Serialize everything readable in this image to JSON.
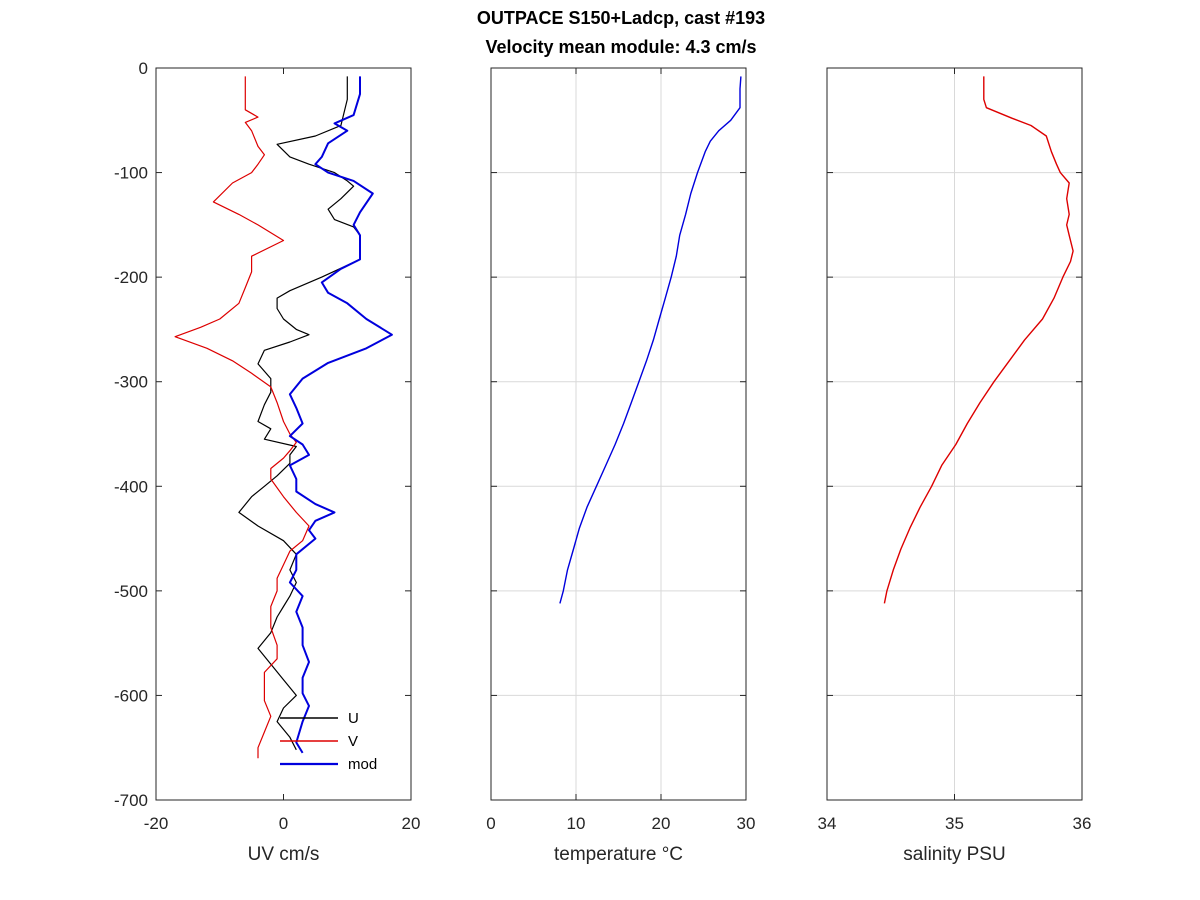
{
  "figure": {
    "title_line1": "OUTPACE S150+Ladcp, cast #193",
    "title_line2": "Velocity mean module:  4.3 cm/s"
  },
  "colors": {
    "u": "#000000",
    "v": "#dd0000",
    "mod": "#0000dd",
    "temp": "#0000dd",
    "sal": "#dd0000"
  },
  "chart_data": [
    {
      "type": "line",
      "xlabel": "UV cm/s",
      "xlim": [
        -20,
        20
      ],
      "ylim": [
        -700,
        0
      ],
      "xticks": [
        -20,
        0,
        20
      ],
      "yticks": [
        0,
        -100,
        -200,
        -300,
        -400,
        -500,
        -600,
        -700
      ],
      "grid": false,
      "legend": {
        "placement": "bottom-right",
        "entries": [
          "U",
          "V",
          "mod"
        ]
      },
      "series": [
        {
          "name": "U",
          "points": [
            [
              10,
              -8
            ],
            [
              10,
              -30
            ],
            [
              9,
              -55
            ],
            [
              5,
              -65
            ],
            [
              -1,
              -73
            ],
            [
              1,
              -85
            ],
            [
              4,
              -92
            ],
            [
              8,
              -100
            ],
            [
              10,
              -108
            ],
            [
              11,
              -113
            ],
            [
              9,
              -125
            ],
            [
              7,
              -135
            ],
            [
              8,
              -145
            ],
            [
              11,
              -152
            ],
            [
              12,
              -160
            ],
            [
              12,
              -170
            ],
            [
              12,
              -183
            ],
            [
              6,
              -200
            ],
            [
              1,
              -213
            ],
            [
              -1,
              -220
            ],
            [
              -1,
              -230
            ],
            [
              0,
              -240
            ],
            [
              2,
              -250
            ],
            [
              4,
              -255
            ],
            [
              1,
              -262
            ],
            [
              -3,
              -270
            ],
            [
              -4,
              -283
            ],
            [
              -2,
              -297
            ],
            [
              -2,
              -310
            ],
            [
              -3,
              -322
            ],
            [
              -4,
              -338
            ],
            [
              -2,
              -345
            ],
            [
              -3,
              -355
            ],
            [
              2,
              -362
            ],
            [
              1,
              -370
            ],
            [
              1,
              -378
            ],
            [
              -1,
              -390
            ],
            [
              -3,
              -400
            ],
            [
              -5,
              -410
            ],
            [
              -7,
              -425
            ],
            [
              -4,
              -438
            ],
            [
              0,
              -452
            ],
            [
              2,
              -465
            ],
            [
              1,
              -480
            ],
            [
              2,
              -492
            ],
            [
              1,
              -505
            ],
            [
              0,
              -515
            ],
            [
              -1,
              -525
            ],
            [
              -2,
              -540
            ],
            [
              -4,
              -555
            ],
            [
              -2,
              -570
            ],
            [
              0,
              -585
            ],
            [
              2,
              -600
            ],
            [
              0,
              -612
            ],
            [
              -1,
              -625
            ],
            [
              1,
              -640
            ],
            [
              2,
              -652
            ]
          ]
        },
        {
          "name": "V",
          "points": [
            [
              -6,
              -8
            ],
            [
              -6,
              -40
            ],
            [
              -4,
              -47
            ],
            [
              -6,
              -52
            ],
            [
              -5,
              -60
            ],
            [
              -4,
              -75
            ],
            [
              -3,
              -83
            ],
            [
              -4,
              -92
            ],
            [
              -5,
              -100
            ],
            [
              -8,
              -110
            ],
            [
              -11,
              -128
            ],
            [
              -7,
              -140
            ],
            [
              -4,
              -150
            ],
            [
              0,
              -165
            ],
            [
              -5,
              -180
            ],
            [
              -5,
              -195
            ],
            [
              -6,
              -210
            ],
            [
              -7,
              -225
            ],
            [
              -10,
              -240
            ],
            [
              -13,
              -248
            ],
            [
              -17,
              -257
            ],
            [
              -12,
              -268
            ],
            [
              -8,
              -280
            ],
            [
              -5,
              -292
            ],
            [
              -2,
              -305
            ],
            [
              -1,
              -320
            ],
            [
              0,
              -338
            ],
            [
              1,
              -350
            ],
            [
              2,
              -358
            ],
            [
              1,
              -366
            ],
            [
              0,
              -373
            ],
            [
              -2,
              -383
            ],
            [
              -2,
              -393
            ],
            [
              0,
              -410
            ],
            [
              2,
              -425
            ],
            [
              4,
              -438
            ],
            [
              3,
              -452
            ],
            [
              1,
              -462
            ],
            [
              0,
              -475
            ],
            [
              -1,
              -488
            ],
            [
              -1,
              -500
            ],
            [
              -2,
              -515
            ],
            [
              -2,
              -535
            ],
            [
              -1,
              -552
            ],
            [
              -1,
              -565
            ],
            [
              -3,
              -578
            ],
            [
              -3,
              -593
            ],
            [
              -3,
              -605
            ],
            [
              -2,
              -620
            ],
            [
              -3,
              -635
            ],
            [
              -4,
              -650
            ],
            [
              -4,
              -660
            ]
          ]
        },
        {
          "name": "mod",
          "points": [
            [
              12,
              -8
            ],
            [
              12,
              -25
            ],
            [
              11,
              -45
            ],
            [
              8,
              -53
            ],
            [
              10,
              -60
            ],
            [
              7,
              -72
            ],
            [
              6,
              -85
            ],
            [
              5,
              -92
            ],
            [
              7,
              -100
            ],
            [
              11,
              -108
            ],
            [
              14,
              -120
            ],
            [
              12,
              -138
            ],
            [
              11,
              -150
            ],
            [
              12,
              -160
            ],
            [
              12,
              -170
            ],
            [
              12,
              -183
            ],
            [
              9,
              -192
            ],
            [
              6,
              -205
            ],
            [
              7,
              -215
            ],
            [
              10,
              -225
            ],
            [
              13,
              -240
            ],
            [
              17,
              -255
            ],
            [
              13,
              -268
            ],
            [
              7,
              -282
            ],
            [
              3,
              -297
            ],
            [
              1,
              -312
            ],
            [
              2,
              -325
            ],
            [
              3,
              -340
            ],
            [
              1,
              -352
            ],
            [
              3,
              -360
            ],
            [
              4,
              -370
            ],
            [
              1,
              -380
            ],
            [
              2,
              -393
            ],
            [
              2,
              -405
            ],
            [
              5,
              -417
            ],
            [
              8,
              -425
            ],
            [
              5,
              -433
            ],
            [
              4,
              -442
            ],
            [
              5,
              -450
            ],
            [
              2,
              -465
            ],
            [
              2,
              -480
            ],
            [
              1,
              -492
            ],
            [
              3,
              -505
            ],
            [
              2,
              -520
            ],
            [
              3,
              -535
            ],
            [
              3,
              -552
            ],
            [
              4,
              -568
            ],
            [
              3,
              -583
            ],
            [
              3,
              -598
            ],
            [
              4,
              -610
            ],
            [
              3,
              -625
            ],
            [
              2,
              -645
            ],
            [
              3,
              -655
            ]
          ]
        }
      ]
    },
    {
      "type": "line",
      "xlabel": "temperature °C",
      "xlim": [
        0,
        30
      ],
      "ylim": [
        -700,
        0
      ],
      "xticks": [
        0,
        10,
        20,
        30
      ],
      "yticks": [
        0,
        -100,
        -200,
        -300,
        -400,
        -500,
        -600,
        -700
      ],
      "grid": true,
      "series": [
        {
          "name": "",
          "points": [
            [
              29.4,
              -8
            ],
            [
              29.3,
              -20
            ],
            [
              29.3,
              -38
            ],
            [
              28.2,
              -50
            ],
            [
              26.8,
              -60
            ],
            [
              25.8,
              -70
            ],
            [
              25.2,
              -80
            ],
            [
              24.3,
              -100
            ],
            [
              23.5,
              -120
            ],
            [
              22.9,
              -140
            ],
            [
              22.2,
              -160
            ],
            [
              21.8,
              -180
            ],
            [
              21.2,
              -200
            ],
            [
              20.5,
              -220
            ],
            [
              19.8,
              -240
            ],
            [
              19.1,
              -260
            ],
            [
              18.3,
              -280
            ],
            [
              17.4,
              -300
            ],
            [
              16.5,
              -320
            ],
            [
              15.6,
              -340
            ],
            [
              14.6,
              -360
            ],
            [
              13.5,
              -380
            ],
            [
              12.4,
              -400
            ],
            [
              11.3,
              -420
            ],
            [
              10.4,
              -440
            ],
            [
              9.7,
              -460
            ],
            [
              9.0,
              -480
            ],
            [
              8.5,
              -500
            ],
            [
              8.1,
              -512
            ]
          ]
        }
      ]
    },
    {
      "type": "line",
      "xlabel": "salinity PSU",
      "xlim": [
        34,
        36
      ],
      "ylim": [
        -700,
        0
      ],
      "xticks": [
        34,
        35,
        36
      ],
      "yticks": [
        0,
        -100,
        -200,
        -300,
        -400,
        -500,
        -600,
        -700
      ],
      "grid": true,
      "series": [
        {
          "name": "",
          "points": [
            [
              35.23,
              -8
            ],
            [
              35.23,
              -30
            ],
            [
              35.25,
              -38
            ],
            [
              35.45,
              -48
            ],
            [
              35.6,
              -55
            ],
            [
              35.72,
              -65
            ],
            [
              35.76,
              -80
            ],
            [
              35.8,
              -92
            ],
            [
              35.83,
              -100
            ],
            [
              35.9,
              -110
            ],
            [
              35.88,
              -125
            ],
            [
              35.9,
              -140
            ],
            [
              35.88,
              -150
            ],
            [
              35.9,
              -160
            ],
            [
              35.93,
              -175
            ],
            [
              35.91,
              -185
            ],
            [
              35.85,
              -200
            ],
            [
              35.78,
              -220
            ],
            [
              35.69,
              -240
            ],
            [
              35.55,
              -260
            ],
            [
              35.43,
              -280
            ],
            [
              35.31,
              -300
            ],
            [
              35.2,
              -320
            ],
            [
              35.1,
              -340
            ],
            [
              35.01,
              -360
            ],
            [
              34.9,
              -380
            ],
            [
              34.82,
              -400
            ],
            [
              34.73,
              -420
            ],
            [
              34.65,
              -440
            ],
            [
              34.58,
              -460
            ],
            [
              34.52,
              -480
            ],
            [
              34.47,
              -500
            ],
            [
              34.45,
              -512
            ]
          ]
        }
      ]
    }
  ]
}
